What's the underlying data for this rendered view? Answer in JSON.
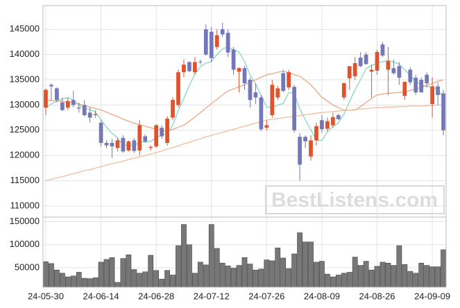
{
  "chart_data": [
    {
      "type": "candlestick",
      "ylim": [
        107800,
        149700
      ],
      "yticks": [
        110000,
        115000,
        120000,
        125000,
        130000,
        135000,
        140000,
        145000
      ],
      "grid": true,
      "up_color": "#e0522b",
      "down_color": "#7477b8",
      "open": [
        129500,
        134000,
        133300,
        130500,
        129500,
        131000,
        129500,
        130000,
        128500,
        128000,
        126500,
        122500,
        122500,
        121500,
        123500,
        121000,
        123000,
        121000,
        123800,
        121500,
        121800,
        125500,
        122500,
        127500,
        130000,
        136500,
        138500,
        136500,
        138600,
        145000,
        144500,
        141500,
        145000,
        144300,
        141000,
        136600,
        137300,
        135000,
        132500,
        131500,
        125500,
        128000,
        131500,
        136300,
        133500,
        133600,
        123700,
        123700,
        119800,
        123000,
        127000,
        125300,
        126000,
        128000,
        131500,
        135300,
        135700,
        139400,
        140000,
        136600,
        136800,
        142000,
        137000,
        137300,
        137700,
        131800,
        137000,
        135400,
        135000,
        136000,
        130200,
        133700,
        132300
      ],
      "high": [
        133300,
        134300,
        133500,
        131500,
        131500,
        132800,
        130500,
        131000,
        129500,
        129000,
        127000,
        123000,
        123300,
        123500,
        124000,
        123000,
        123500,
        127000,
        124200,
        122000,
        126200,
        126000,
        127800,
        131500,
        137000,
        139000,
        138700,
        139500,
        139000,
        146000,
        145500,
        145000,
        146300,
        145000,
        141500,
        137500,
        137800,
        135500,
        134300,
        132000,
        127000,
        135000,
        133800,
        137000,
        137000,
        134000,
        124500,
        124000,
        124000,
        126500,
        128000,
        127500,
        128500,
        128300,
        134500,
        137300,
        139500,
        140500,
        140500,
        138000,
        141000,
        142500,
        141500,
        139000,
        138500,
        134500,
        137500,
        136000,
        135500,
        136500,
        135500,
        134500,
        133000
      ],
      "low": [
        128000,
        130800,
        130500,
        128800,
        129000,
        129500,
        128500,
        127700,
        126500,
        127500,
        121800,
        121500,
        119500,
        120800,
        120500,
        120800,
        120500,
        120000,
        122500,
        121000,
        121500,
        123300,
        122000,
        127000,
        129500,
        135500,
        136500,
        136000,
        138000,
        139800,
        138500,
        141000,
        143500,
        139500,
        136000,
        132500,
        133000,
        129500,
        130200,
        124800,
        125000,
        127500,
        131000,
        132500,
        133000,
        124500,
        115000,
        121500,
        119000,
        122000,
        124500,
        124800,
        125500,
        127000,
        131000,
        133000,
        135000,
        137500,
        138000,
        131500,
        136000,
        139500,
        132000,
        136000,
        134000,
        131000,
        134000,
        132000,
        132500,
        133500,
        127500,
        130000,
        124000
      ],
      "close": [
        133000,
        133700,
        131000,
        129000,
        130800,
        130000,
        129300,
        128000,
        127500,
        128200,
        122500,
        122000,
        121800,
        123000,
        120800,
        122800,
        120900,
        126000,
        122800,
        121700,
        126000,
        123800,
        127300,
        131000,
        136500,
        138000,
        136700,
        138500,
        138500,
        140000,
        139300,
        143800,
        144000,
        140400,
        137000,
        137300,
        134300,
        131000,
        131500,
        125200,
        126000,
        134000,
        133300,
        132800,
        136500,
        125000,
        118200,
        122800,
        123000,
        125800,
        125200,
        126800,
        127600,
        127200,
        134300,
        137700,
        138300,
        137700,
        138100,
        137000,
        140500,
        139800,
        138700,
        136300,
        135400,
        134600,
        134500,
        132500,
        132500,
        134300,
        133700,
        132000,
        125000
      ],
      "series": [
        {
          "color": "#86d6be",
          "values": [
            129500,
            130200,
            130800,
            131200,
            131500,
            130900,
            130000,
            129400,
            129100,
            128600,
            127100,
            125600,
            124400,
            123500,
            122000,
            122100,
            121900,
            122700,
            122700,
            122800,
            123500,
            124100,
            124300,
            126000,
            128900,
            131300,
            133900,
            136100,
            137600,
            138300,
            138600,
            140000,
            141100,
            141500,
            140900,
            140500,
            138600,
            136000,
            134200,
            131900,
            129600,
            129500,
            130000,
            130300,
            132500,
            132300,
            129200,
            127100,
            125100,
            123000,
            123000,
            124700,
            125700,
            126500,
            128200,
            130700,
            133000,
            135000,
            137200,
            137800,
            138300,
            138600,
            138800,
            138500,
            138100,
            137000,
            135900,
            134700,
            133900,
            133700,
            133500,
            133000,
            131500
          ]
        },
        {
          "color": "#eaa784",
          "values": [
            131000,
            130900,
            130800,
            130700,
            130600,
            130500,
            130200,
            129900,
            129600,
            129300,
            129000,
            128600,
            128100,
            127700,
            127200,
            126800,
            126400,
            126100,
            125800,
            125500,
            125200,
            125000,
            124800,
            125200,
            125600,
            126000,
            126800,
            127600,
            128500,
            129400,
            130300,
            131100,
            132000,
            132800,
            133200,
            133600,
            134000,
            134500,
            135000,
            135500,
            136000,
            136200,
            136500,
            136700,
            136400,
            136000,
            135700,
            134900,
            134000,
            132800,
            131500,
            130800,
            130000,
            129500,
            129000,
            129000,
            129000,
            129700,
            130500,
            131300,
            132000,
            132200,
            132300,
            132400,
            132500,
            132600,
            132900,
            133200,
            133500,
            133900,
            134300,
            134700,
            135000
          ]
        },
        {
          "color": "#efbd9c",
          "values": [
            115000,
            115300,
            115600,
            115800,
            116100,
            116400,
            116700,
            117000,
            117200,
            117500,
            117800,
            118100,
            118400,
            118600,
            118900,
            119200,
            119500,
            119700,
            120000,
            120300,
            120600,
            120900,
            121300,
            121600,
            121900,
            122300,
            122600,
            123000,
            123300,
            123700,
            124000,
            124300,
            124600,
            124900,
            125200,
            125500,
            125800,
            126100,
            126400,
            126700,
            127000,
            127200,
            127300,
            127500,
            127600,
            127800,
            127900,
            128100,
            128200,
            128400,
            128500,
            128600,
            128700,
            128800,
            128900,
            129000,
            129100,
            129200,
            129300,
            129400,
            129500,
            129500,
            129600,
            129600,
            129700,
            129700,
            129800,
            129800,
            129800,
            129900,
            129900,
            130000,
            130000
          ]
        }
      ],
      "watermark": "BestListens.com"
    },
    {
      "type": "bar",
      "categories": [
        "24-05-30",
        null,
        null,
        null,
        null,
        null,
        null,
        null,
        null,
        null,
        "24-06-14",
        null,
        null,
        null,
        null,
        null,
        null,
        null,
        null,
        null,
        "24-06-28",
        null,
        null,
        null,
        null,
        null,
        null,
        null,
        null,
        null,
        "24-07-12",
        null,
        null,
        null,
        null,
        null,
        null,
        null,
        null,
        null,
        "24-07-26",
        null,
        null,
        null,
        null,
        null,
        null,
        null,
        null,
        null,
        "24-08-09",
        null,
        null,
        null,
        null,
        null,
        null,
        null,
        null,
        null,
        "24-08-26",
        null,
        null,
        null,
        null,
        null,
        null,
        null,
        null,
        null,
        "24-09-09",
        null,
        null
      ],
      "values": [
        63000,
        59000,
        45000,
        38000,
        30000,
        32000,
        40000,
        27000,
        26000,
        28000,
        62000,
        68000,
        72000,
        18000,
        70000,
        78000,
        46000,
        38000,
        41000,
        77000,
        44000,
        25000,
        44000,
        34000,
        98000,
        144000,
        100000,
        38000,
        62000,
        56000,
        144000,
        92000,
        60000,
        54000,
        49000,
        55000,
        72000,
        58000,
        45000,
        47000,
        67000,
        65000,
        93000,
        71000,
        48000,
        80000,
        126000,
        106000,
        106000,
        62000,
        64000,
        36000,
        30000,
        34000,
        38000,
        40000,
        73000,
        55000,
        64000,
        45000,
        53000,
        62000,
        60000,
        55000,
        98000,
        57000,
        42000,
        38000,
        60000,
        55000,
        52000,
        52000,
        89000
      ],
      "color": "#777777",
      "ylim": [
        7500,
        160000
      ],
      "yticks": [
        50000,
        100000,
        150000
      ],
      "grid": true
    }
  ]
}
